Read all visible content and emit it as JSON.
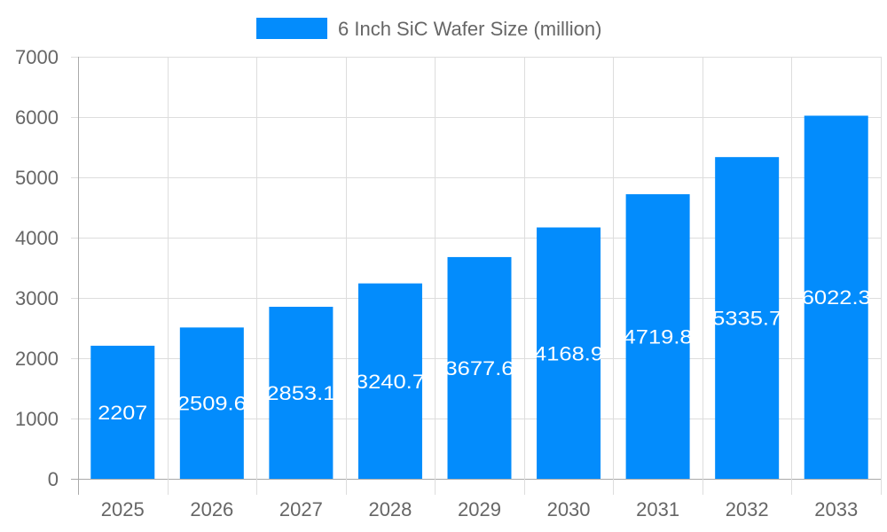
{
  "chart_data": {
    "type": "bar",
    "title": "",
    "xlabel": "",
    "ylabel": "",
    "categories": [
      "2025",
      "2026",
      "2027",
      "2028",
      "2029",
      "2030",
      "2031",
      "2032",
      "2033"
    ],
    "series": [
      {
        "name": "6 Inch SiC Wafer Size (million)",
        "values": [
          2207,
          2509.6,
          2853.1,
          3240.7,
          3677.6,
          4168.9,
          4719.8,
          5335.7,
          6022.3
        ],
        "color": "#038cfc"
      }
    ],
    "ylim": [
      0,
      7000
    ],
    "yticks": [
      0,
      1000,
      2000,
      3000,
      4000,
      5000,
      6000,
      7000
    ],
    "grid": true,
    "legend_position": "top",
    "data_labels": true,
    "colors": {
      "bar": "#038cfc",
      "grid": "#dddddd",
      "axis": "#aaaaaa",
      "tick_text": "#666666",
      "data_label": "#ffffff"
    }
  }
}
